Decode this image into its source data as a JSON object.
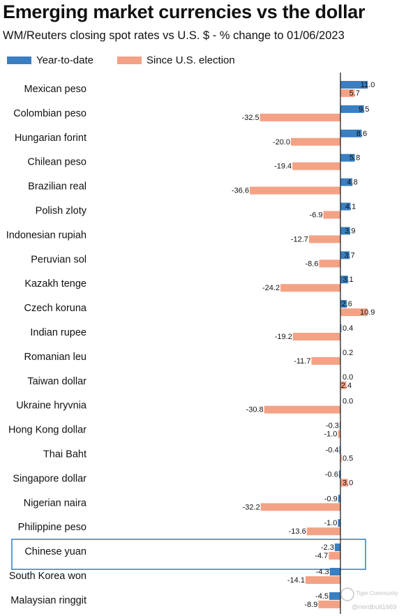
{
  "chart_data": {
    "type": "bar",
    "orientation": "horizontal",
    "title": "Emerging market currencies vs the dollar",
    "subtitle": "WM/Reuters closing spot rates vs U.S. $ - % change to 01/06/2023",
    "categories": [
      "Mexican peso",
      "Colombian peso",
      "Hungarian forint",
      "Chilean peso",
      "Brazilian real",
      "Polish zloty",
      "Indonesian rupiah",
      "Peruvian sol",
      "Kazakh tenge",
      "Czech koruna",
      "Indian rupee",
      "Romanian leu",
      "Taiwan dollar",
      "Ukraine hryvnia",
      "Hong Kong dollar",
      "Thai Baht",
      "Singapore dollar",
      "Nigerian naira",
      "Philippine peso",
      "Chinese yuan",
      "South Korea won",
      "Malaysian ringgit"
    ],
    "series": [
      {
        "name": "Year-to-date",
        "color": "#3a7fc1",
        "values": [
          11.0,
          9.5,
          8.6,
          5.8,
          4.8,
          4.1,
          3.9,
          3.7,
          3.1,
          2.6,
          0.4,
          0.2,
          0.0,
          0.0,
          -0.3,
          -0.4,
          -0.6,
          -0.9,
          -1.0,
          -2.3,
          -4.3,
          -4.5
        ],
        "labels": [
          "11.0",
          "9.5",
          "8.6",
          "5.8",
          "4.8",
          "4.1",
          "3.9",
          "3.7",
          "3.1",
          "2.6",
          "0.4",
          "0.2",
          "0.0",
          "0.0",
          "-0.3",
          "-0.4",
          "-0.6",
          "-0.9",
          "-1.0",
          "-2.3",
          "-4.3",
          "-4.5"
        ]
      },
      {
        "name": "Since U.S. election",
        "color": "#f4a285",
        "values": [
          5.7,
          -32.5,
          -20.0,
          -19.4,
          -36.6,
          -6.9,
          -12.7,
          -8.6,
          -24.2,
          10.9,
          -19.2,
          -11.7,
          2.4,
          -30.8,
          -1.0,
          0.5,
          3.0,
          -32.2,
          -13.6,
          -4.7,
          -14.1,
          -8.9
        ],
        "labels": [
          "5.7",
          "-32.5",
          "-20.0",
          "-19.4",
          "-36.6",
          "-6.9",
          "-12.7",
          "-8.6",
          "-24.2",
          "10.9",
          "-19.2",
          "-11.7",
          "2.4",
          "-30.8",
          "-1.0",
          "0.5",
          "3.0",
          "-32.2",
          "-13.6",
          "-4.7",
          "-14.1",
          "-8.9"
        ]
      }
    ],
    "xlim": [
      -40,
      12
    ],
    "grid": false,
    "legend_position": "top-left",
    "highlighted_category": "Chinese yuan",
    "highlight_color": "#2f7fc2"
  },
  "watermark": {
    "brand": "Tiger Community",
    "handle": "@nerdbull1669",
    "color": "#c3c3c3"
  }
}
